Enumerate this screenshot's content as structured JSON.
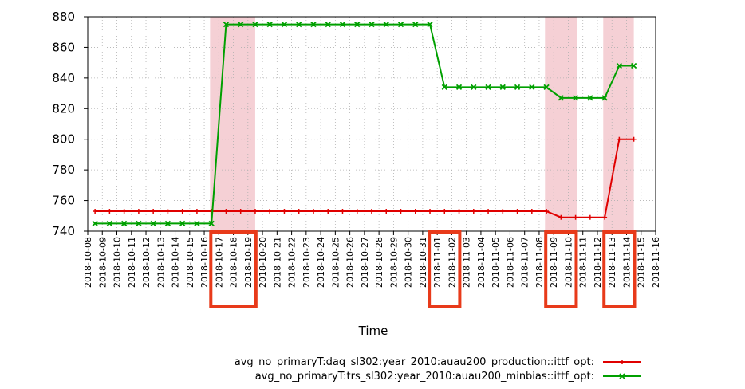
{
  "chart_data": {
    "type": "line",
    "xlabel": "Time",
    "ylabel": "",
    "ylim": [
      740,
      880
    ],
    "yticks": [
      740,
      760,
      780,
      800,
      820,
      840,
      860,
      880
    ],
    "grid": true,
    "legend_position": "bottom-right",
    "x_categories": [
      "2018-10-08",
      "2018-10-09",
      "2018-10-10",
      "2018-10-11",
      "2018-10-12",
      "2018-10-13",
      "2018-10-14",
      "2018-10-15",
      "2018-10-16",
      "2018-10-17",
      "2018-10-18",
      "2018-10-19",
      "2018-10-20",
      "2018-10-21",
      "2018-10-22",
      "2018-10-23",
      "2018-10-24",
      "2018-10-25",
      "2018-10-26",
      "2018-10-27",
      "2018-10-28",
      "2018-10-29",
      "2018-10-30",
      "2018-10-31",
      "2018-11-01",
      "2018-11-02",
      "2018-11-03",
      "2018-11-04",
      "2018-11-05",
      "2018-11-06",
      "2018-11-07",
      "2018-11-08",
      "2018-11-09",
      "2018-11-10",
      "2018-11-11",
      "2018-11-12",
      "2018-11-13",
      "2018-11-14",
      "2018-11-15",
      "2018-11-16"
    ],
    "series": [
      {
        "name": "avg_no_primaryT:daq_sl302:year_2010:auau200_production::ittf_opt:",
        "color": "#e00000",
        "marker": "plus",
        "x": [
          0.5,
          1.5,
          2.5,
          3.5,
          4.5,
          5.5,
          6.5,
          7.5,
          8.5,
          9.5,
          10.5,
          11.5,
          12.5,
          13.5,
          14.5,
          15.5,
          16.5,
          17.5,
          18.5,
          19.5,
          20.5,
          21.5,
          22.5,
          23.5,
          24.5,
          25.5,
          26.5,
          27.5,
          28.5,
          29.5,
          30.5,
          31.5,
          32.5,
          33.5,
          34.5,
          35.5,
          36.5,
          37.5
        ],
        "values": [
          753,
          753,
          753,
          753,
          753,
          753,
          753,
          753,
          753,
          753,
          753,
          753,
          753,
          753,
          753,
          753,
          753,
          753,
          753,
          753,
          753,
          753,
          753,
          753,
          753,
          753,
          753,
          753,
          753,
          753,
          753,
          753,
          749,
          749,
          749,
          749,
          800,
          800
        ]
      },
      {
        "name": "avg_no_primaryT:trs_sl302:year_2010:auau200_minbias::ittf_opt:",
        "color": "#00a000",
        "marker": "x",
        "x": [
          0.5,
          1.5,
          2.5,
          3.5,
          4.5,
          5.5,
          6.5,
          7.5,
          8.5,
          9.5,
          10.5,
          11.5,
          12.5,
          13.5,
          14.5,
          15.5,
          16.5,
          17.5,
          18.5,
          19.5,
          20.5,
          21.5,
          22.5,
          23.5,
          24.5,
          25.5,
          26.5,
          27.5,
          28.5,
          29.5,
          30.5,
          31.5,
          32.5,
          33.5,
          34.5,
          35.5,
          36.5,
          37.5
        ],
        "values": [
          745,
          745,
          745,
          745,
          745,
          745,
          745,
          745,
          745,
          875,
          875,
          875,
          875,
          875,
          875,
          875,
          875,
          875,
          875,
          875,
          875,
          875,
          875,
          875,
          834,
          834,
          834,
          834,
          834,
          834,
          834,
          834,
          827,
          827,
          827,
          827,
          848,
          848
        ]
      }
    ],
    "shaded_ranges": [
      [
        8.4,
        11.5
      ],
      [
        31.4,
        33.6
      ],
      [
        35.4,
        37.5
      ]
    ],
    "highlighted_ticks": [
      9,
      10,
      11,
      24,
      25,
      32,
      33,
      36,
      37
    ],
    "highlight_color": "#e83a1a",
    "shade_color": "#f5d0d5"
  }
}
